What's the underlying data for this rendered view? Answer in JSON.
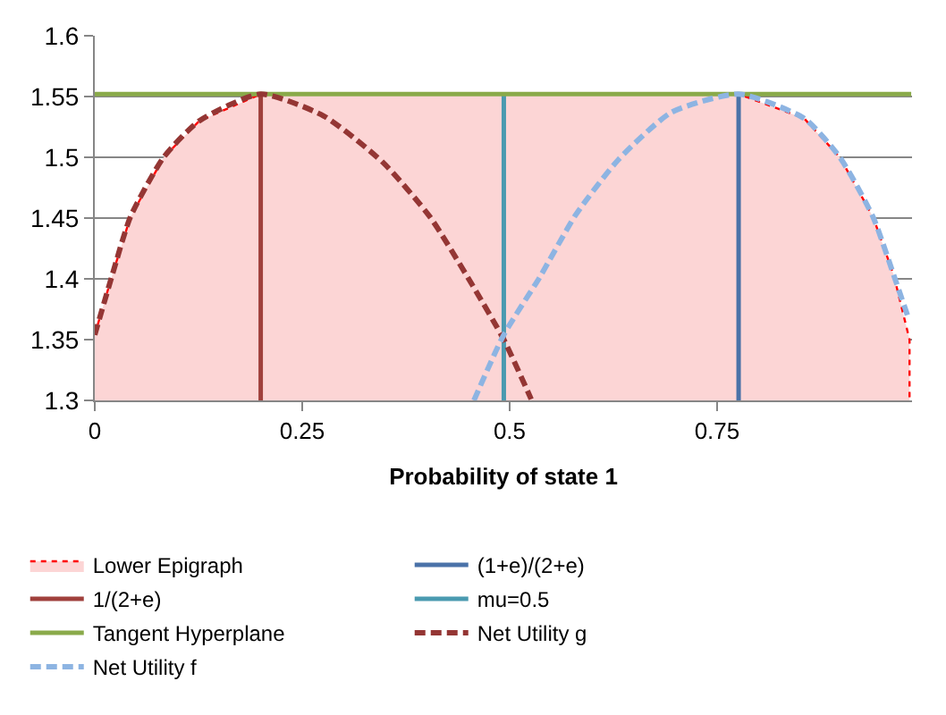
{
  "chart_data": {
    "type": "line",
    "xlabel": "Probability of state 1",
    "xlim": [
      0,
      0.985
    ],
    "xticks": [
      0,
      0.25,
      0.5,
      0.75
    ],
    "ylim": [
      1.3,
      1.6
    ],
    "yticks": [
      1.3,
      1.35,
      1.4,
      1.45,
      1.5,
      1.55,
      1.6
    ],
    "grid": "y",
    "legend": "bottom",
    "series": [
      {
        "name": "Lower Epigraph",
        "type": "area",
        "color": "#fcd5d5",
        "line_style": "dotted",
        "x": [
          0,
          0.021,
          0.043,
          0.083,
          0.126,
          0.2,
          0.776,
          0.855,
          0.898,
          0.938,
          0.963,
          0.982,
          0.982
        ],
        "values": [
          1.354,
          1.403,
          1.451,
          1.5,
          1.53,
          1.552,
          1.552,
          1.532,
          1.5,
          1.451,
          1.403,
          1.35,
          1.3
        ]
      },
      {
        "name": "(1+e)/(2+e)",
        "color": "#4a72a8",
        "line_style": "solid",
        "x": [
          0.776,
          0.776
        ],
        "values": [
          1.3,
          1.552
        ]
      },
      {
        "name": "1/(2+e)",
        "color": "#a0403c",
        "line_style": "solid",
        "x": [
          0.2,
          0.2
        ],
        "values": [
          1.3,
          1.552
        ]
      },
      {
        "name": "mu=0.5",
        "color": "#4a9ab0",
        "line_style": "solid",
        "x": [
          0.493,
          0.493
        ],
        "values": [
          1.3,
          1.552
        ]
      },
      {
        "name": "Tangent Hyperplane",
        "color": "#8aaa4a",
        "line_style": "solid",
        "x": [
          0,
          0.984
        ],
        "values": [
          1.552,
          1.552
        ]
      },
      {
        "name": "Net Utility g",
        "color": "#943634",
        "line_style": "dashed",
        "x": [
          0,
          0.021,
          0.043,
          0.083,
          0.126,
          0.2,
          0.276,
          0.347,
          0.404,
          0.455,
          0.493,
          0.526
        ],
        "values": [
          1.354,
          1.403,
          1.451,
          1.5,
          1.53,
          1.552,
          1.534,
          1.496,
          1.451,
          1.395,
          1.35,
          1.301
        ]
      },
      {
        "name": "Net Utility f",
        "color": "#8db4e2",
        "line_style": "dashed",
        "x": [
          0.457,
          0.493,
          0.536,
          0.58,
          0.631,
          0.695,
          0.776,
          0.855,
          0.898,
          0.938,
          0.963,
          0.981
        ],
        "values": [
          1.3,
          1.354,
          1.401,
          1.453,
          1.498,
          1.537,
          1.552,
          1.532,
          1.5,
          1.451,
          1.403,
          1.367
        ]
      }
    ]
  }
}
